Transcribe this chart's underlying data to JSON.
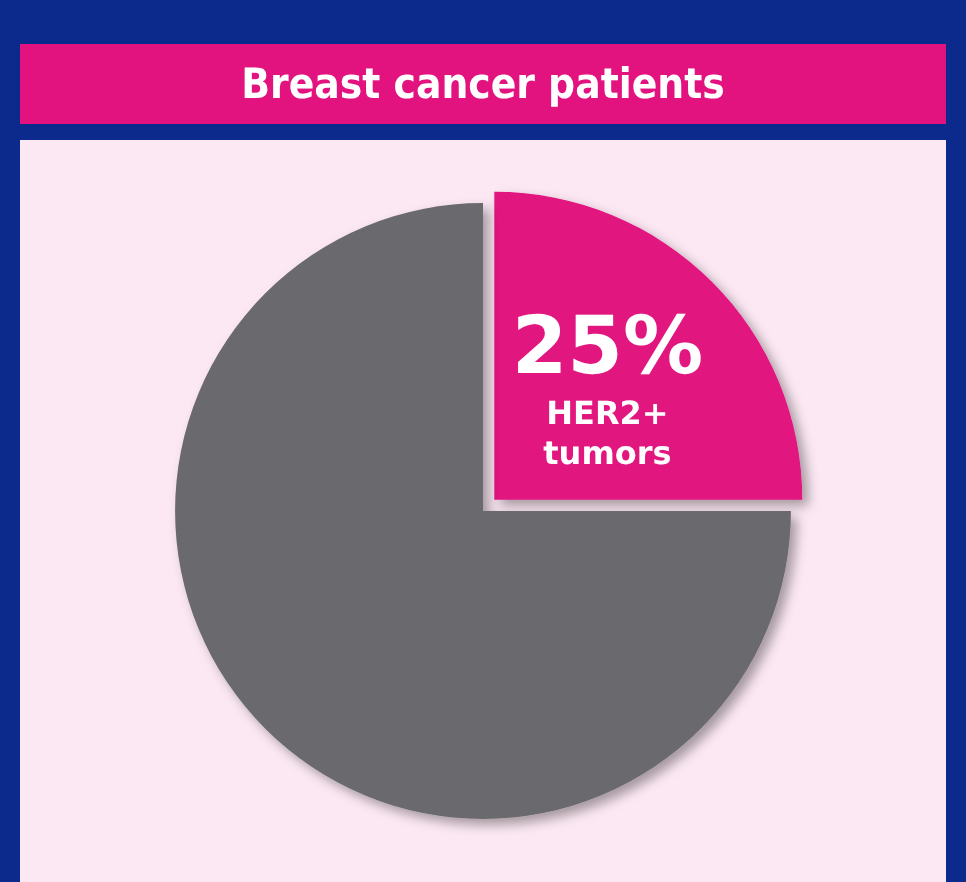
{
  "chart_data": {
    "type": "pie",
    "title": "Breast cancer patients",
    "categories": [
      "HER2+ tumors",
      null
    ],
    "values": [
      25,
      75
    ],
    "colors": [
      "#e2127f",
      "#6b6b6e"
    ],
    "value_labels": [
      "25%",
      null
    ],
    "legend": false
  }
}
